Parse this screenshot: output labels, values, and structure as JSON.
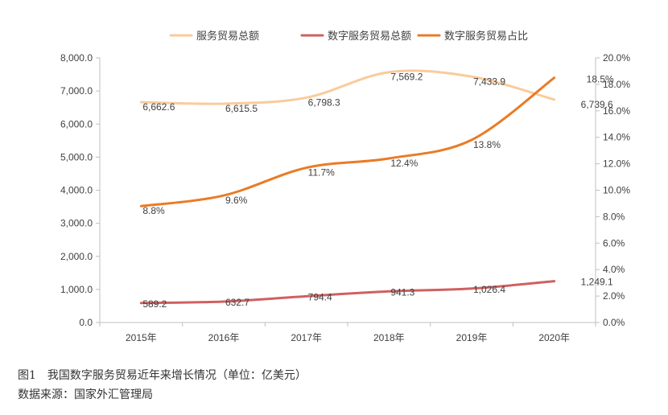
{
  "chart_data": {
    "type": "line",
    "categories": [
      "2015年",
      "2016年",
      "2017年",
      "2018年",
      "2019年",
      "2020年"
    ],
    "series": [
      {
        "name": "服务贸易总额",
        "axis": "left",
        "color": "#F9CB9C",
        "values": [
          6662.6,
          6615.5,
          6798.3,
          7569.2,
          7433.9,
          6739.6
        ],
        "labels": [
          "6,662.6",
          "6,615.5",
          "6,798.3",
          "7,569.2",
          "7,433.9",
          "6,739.6"
        ]
      },
      {
        "name": "数字服务贸易总额",
        "axis": "left",
        "color": "#D06060",
        "values": [
          589.2,
          632.7,
          794.4,
          941.3,
          1026.4,
          1249.1
        ],
        "labels": [
          "589.2",
          "632.7",
          "794.4",
          "941.3",
          "1,026.4",
          "1,249.1"
        ]
      },
      {
        "name": "数字服务贸易占比",
        "axis": "right",
        "color": "#E97B26",
        "values": [
          8.8,
          9.6,
          11.7,
          12.4,
          13.8,
          18.5
        ],
        "labels": [
          "8.8%",
          "9.6%",
          "11.7%",
          "12.4%",
          "13.8%",
          "18.5%"
        ]
      }
    ],
    "y_left": {
      "ylim": [
        0,
        8000
      ],
      "ticks": [
        "0.0",
        "1,000.0",
        "2,000.0",
        "3,000.0",
        "4,000.0",
        "5,000.0",
        "6,000.0",
        "7,000.0",
        "8,000.0"
      ]
    },
    "y_right": {
      "ylim": [
        0,
        20
      ],
      "ticks": [
        "0.0%",
        "2.0%",
        "4.0%",
        "6.0%",
        "8.0%",
        "10.0%",
        "12.0%",
        "14.0%",
        "16.0%",
        "18.0%",
        "20.0%"
      ]
    },
    "grid": false,
    "legend": "top-center"
  },
  "caption": {
    "figure_no": "图1",
    "title": "我国数字服务贸易近年来增长情况（单位：亿美元）",
    "source": "数据来源：国家外汇管理局"
  }
}
